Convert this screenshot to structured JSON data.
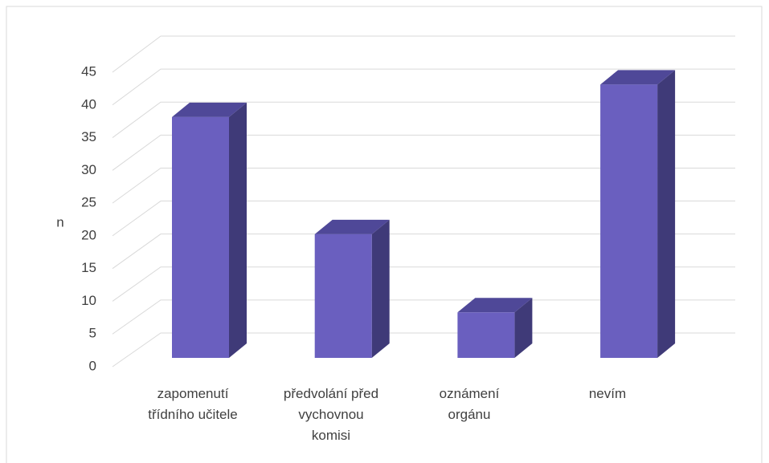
{
  "chart_data": {
    "type": "bar3d",
    "y_label": "n",
    "categories": [
      "zapomenutí třídního učitele",
      "předvolání před vychovnou komisi",
      "oznámení orgánu",
      "nevím"
    ],
    "values": [
      37,
      19,
      7,
      42
    ],
    "color": "#6a5fbf",
    "ylim": [
      0,
      45
    ],
    "yticks": [
      0,
      5,
      10,
      15,
      20,
      25,
      30,
      35,
      40,
      45
    ],
    "grid": true
  }
}
